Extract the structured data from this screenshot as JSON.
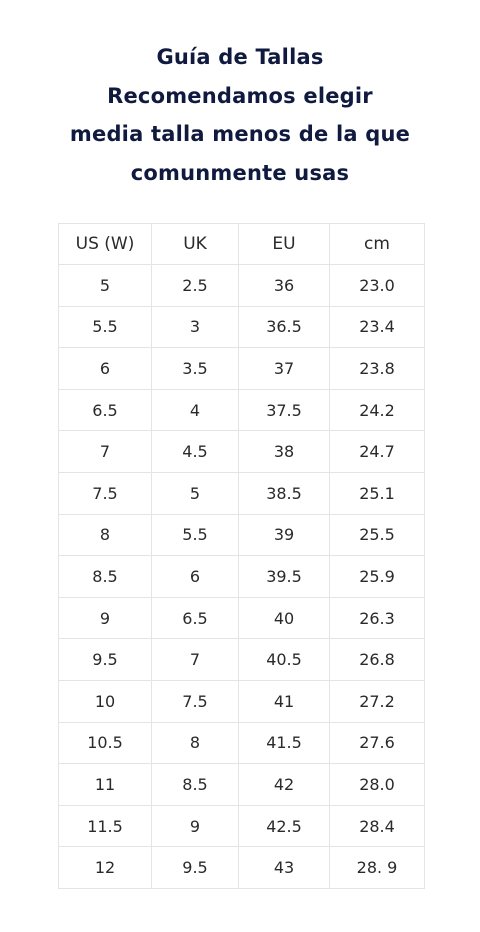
{
  "title_lines": [
    "Guía de Tallas",
    "Recomendamos elegir",
    "media talla menos de la que",
    "comunmente usas"
  ],
  "table": {
    "headers": [
      "US (W)",
      "UK",
      "EU",
      "cm"
    ],
    "rows": [
      [
        "5",
        "2.5",
        "36",
        "23.0"
      ],
      [
        "5.5",
        "3",
        "36.5",
        "23.4"
      ],
      [
        "6",
        "3.5",
        "37",
        "23.8"
      ],
      [
        "6.5",
        "4",
        "37.5",
        "24.2"
      ],
      [
        "7",
        "4.5",
        "38",
        "24.7"
      ],
      [
        "7.5",
        "5",
        "38.5",
        "25.1"
      ],
      [
        "8",
        "5.5",
        "39",
        "25.5"
      ],
      [
        "8.5",
        "6",
        "39.5",
        "25.9"
      ],
      [
        "9",
        "6.5",
        "40",
        "26.3"
      ],
      [
        "9.5",
        "7",
        "40.5",
        "26.8"
      ],
      [
        "10",
        "7.5",
        "41",
        "27.2"
      ],
      [
        "10.5",
        "8",
        "41.5",
        "27.6"
      ],
      [
        "11",
        "8.5",
        "42",
        "28.0"
      ],
      [
        "11.5",
        "9",
        "42.5",
        "28.4"
      ],
      [
        "12",
        "9.5",
        "43",
        "28. 9"
      ]
    ]
  }
}
